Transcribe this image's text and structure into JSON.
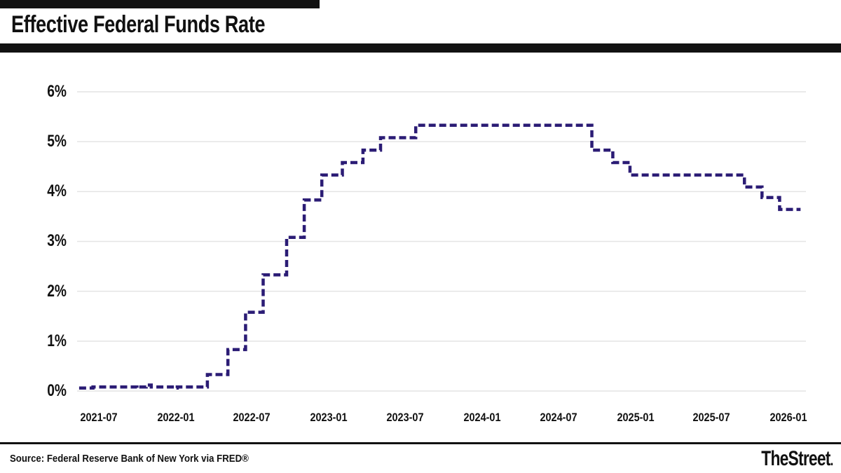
{
  "header": {
    "title": "Effective Federal Funds Rate"
  },
  "footer": {
    "source": "Source: Federal Reserve Bank of New York via FRED®",
    "brand": "TheStreet",
    "brand_mark": "."
  },
  "chart_data": {
    "type": "line",
    "subtype": "step",
    "title": "Effective Federal Funds Rate",
    "xlabel": "",
    "ylabel": "",
    "grid": true,
    "legend": "none",
    "line_color": "#2b1c75",
    "line_dashed": true,
    "gridline_color": "#e4e4e4",
    "ylim": [
      0,
      6
    ],
    "y_tick_values": [
      0,
      1,
      2,
      3,
      4,
      5,
      6
    ],
    "y_tick_labels": [
      "0%",
      "1%",
      "2%",
      "3%",
      "4%",
      "5%",
      "6%"
    ],
    "x_ticks": [
      "2021-07",
      "2022-01",
      "2022-07",
      "2023-01",
      "2023-07",
      "2024-01",
      "2024-07",
      "2025-01",
      "2025-07",
      "2026-01"
    ],
    "series": [
      {
        "name": "Effective Federal Funds Rate (%)",
        "steps": [
          [
            "2021-05-15",
            0.06
          ],
          [
            "2021-06-17",
            0.08
          ],
          [
            "2021-09-30",
            0.06
          ],
          [
            "2021-10-04",
            0.08
          ],
          [
            "2021-10-22",
            0.12
          ],
          [
            "2021-11-03",
            0.08
          ],
          [
            "2021-12-31",
            0.06
          ],
          [
            "2022-01-04",
            0.08
          ],
          [
            "2022-03-17",
            0.33
          ],
          [
            "2022-05-05",
            0.83
          ],
          [
            "2022-06-16",
            1.58
          ],
          [
            "2022-07-28",
            2.33
          ],
          [
            "2022-09-22",
            3.08
          ],
          [
            "2022-11-03",
            3.83
          ],
          [
            "2022-12-15",
            4.33
          ],
          [
            "2023-02-02",
            4.58
          ],
          [
            "2023-03-23",
            4.83
          ],
          [
            "2023-05-04",
            5.08
          ],
          [
            "2023-07-27",
            5.33
          ],
          [
            "2024-09-19",
            4.83
          ],
          [
            "2024-11-08",
            4.58
          ],
          [
            "2024-12-19",
            4.33
          ],
          [
            "2025-09-18",
            4.09
          ],
          [
            "2025-10-30",
            3.88
          ],
          [
            "2025-12-11",
            3.64
          ],
          [
            "2026-01-30",
            3.64
          ]
        ]
      }
    ]
  }
}
